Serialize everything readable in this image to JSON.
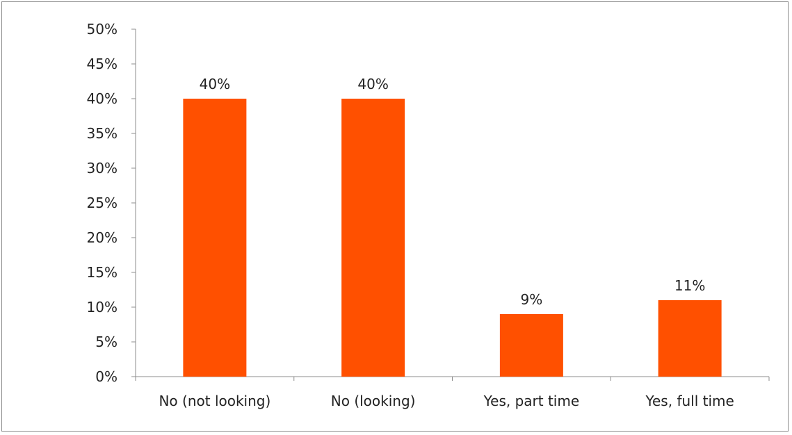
{
  "chart_data": {
    "type": "bar",
    "title": "",
    "xlabel": "",
    "ylabel": "",
    "categories": [
      "No (not looking)",
      "No (looking)",
      "Yes, part time",
      "Yes, full time"
    ],
    "values": [
      40,
      40,
      9,
      11
    ],
    "data_labels": [
      "40%",
      "40%",
      "9%",
      "11%"
    ],
    "ylim": [
      0,
      50
    ],
    "y_ticks": [
      0,
      5,
      10,
      15,
      20,
      25,
      30,
      35,
      40,
      45,
      50
    ],
    "y_tick_labels": [
      "0%",
      "5%",
      "10%",
      "15%",
      "20%",
      "25%",
      "30%",
      "35%",
      "40%",
      "45%",
      "50%"
    ],
    "grid": false,
    "legend": "none",
    "bar_color": "#FF5000"
  }
}
